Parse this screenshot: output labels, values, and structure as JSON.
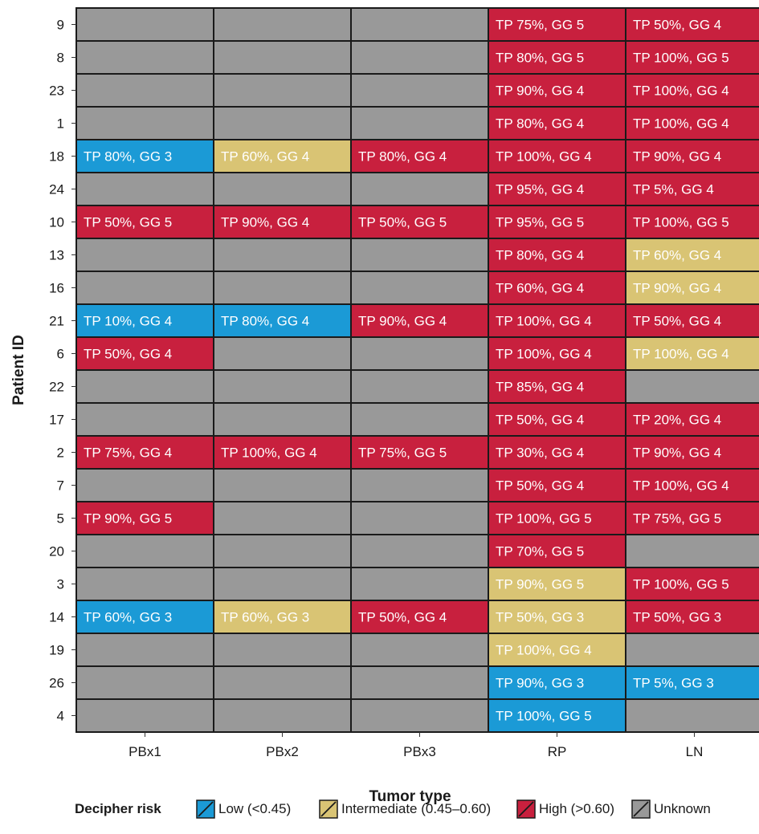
{
  "chart_data": {
    "type": "heatmap",
    "xlabel": "Tumor type",
    "ylabel": "Patient ID",
    "x_categories": [
      "PBx1",
      "PBx2",
      "PBx3",
      "RP",
      "LN"
    ],
    "y_categories": [
      "9",
      "8",
      "23",
      "1",
      "18",
      "24",
      "10",
      "13",
      "16",
      "21",
      "6",
      "22",
      "17",
      "2",
      "7",
      "5",
      "20",
      "3",
      "14",
      "19",
      "26",
      "4"
    ],
    "risk_colors": {
      "low": "#1b9ad6",
      "intermediate": "#d9c474",
      "high": "#c8203e",
      "unknown": "#999999"
    },
    "legend": {
      "title": "Decipher risk",
      "placement": "bottom",
      "entries": [
        {
          "key": "low",
          "label": "Low (<0.45)"
        },
        {
          "key": "intermediate",
          "label": "Intermediate (0.45–0.60)"
        },
        {
          "key": "high",
          "label": "High (>0.60)"
        },
        {
          "key": "unknown",
          "label": "Unknown"
        }
      ]
    },
    "cells": [
      [
        "9",
        "RP",
        "high",
        "TP 75%, GG 5"
      ],
      [
        "9",
        "LN",
        "high",
        "TP 50%, GG 4"
      ],
      [
        "8",
        "RP",
        "high",
        "TP 80%, GG 5"
      ],
      [
        "8",
        "LN",
        "high",
        "TP 100%, GG 5"
      ],
      [
        "23",
        "RP",
        "high",
        "TP 90%, GG 4"
      ],
      [
        "23",
        "LN",
        "high",
        "TP 100%, GG 4"
      ],
      [
        "1",
        "RP",
        "high",
        "TP 80%, GG 4"
      ],
      [
        "1",
        "LN",
        "high",
        "TP 100%, GG 4"
      ],
      [
        "18",
        "PBx1",
        "low",
        "TP 80%, GG 3"
      ],
      [
        "18",
        "PBx2",
        "intermediate",
        "TP 60%, GG 4"
      ],
      [
        "18",
        "PBx3",
        "high",
        "TP 80%, GG 4"
      ],
      [
        "18",
        "RP",
        "high",
        "TP 100%, GG 4"
      ],
      [
        "18",
        "LN",
        "high",
        "TP 90%, GG 4"
      ],
      [
        "24",
        "RP",
        "high",
        "TP 95%, GG 4"
      ],
      [
        "24",
        "LN",
        "high",
        "TP 5%, GG 4"
      ],
      [
        "10",
        "PBx1",
        "high",
        "TP 50%, GG 5"
      ],
      [
        "10",
        "PBx2",
        "high",
        "TP 90%, GG 4"
      ],
      [
        "10",
        "PBx3",
        "high",
        "TP 50%, GG 5"
      ],
      [
        "10",
        "RP",
        "high",
        "TP 95%, GG 5"
      ],
      [
        "10",
        "LN",
        "high",
        "TP 100%, GG 5"
      ],
      [
        "13",
        "RP",
        "high",
        "TP 80%, GG 4"
      ],
      [
        "13",
        "LN",
        "intermediate",
        "TP 60%, GG 4"
      ],
      [
        "16",
        "RP",
        "high",
        "TP 60%, GG 4"
      ],
      [
        "16",
        "LN",
        "intermediate",
        "TP 90%, GG 4"
      ],
      [
        "21",
        "PBx1",
        "low",
        "TP 10%, GG 4"
      ],
      [
        "21",
        "PBx2",
        "low",
        "TP 80%, GG 4"
      ],
      [
        "21",
        "PBx3",
        "high",
        "TP 90%, GG 4"
      ],
      [
        "21",
        "RP",
        "high",
        "TP 100%, GG 4"
      ],
      [
        "21",
        "LN",
        "high",
        "TP 50%, GG 4"
      ],
      [
        "6",
        "PBx1",
        "high",
        "TP 50%, GG 4"
      ],
      [
        "6",
        "RP",
        "high",
        "TP 100%, GG 4"
      ],
      [
        "6",
        "LN",
        "intermediate",
        "TP 100%, GG 4"
      ],
      [
        "22",
        "RP",
        "high",
        "TP 85%, GG 4"
      ],
      [
        "17",
        "RP",
        "high",
        "TP 50%, GG 4"
      ],
      [
        "17",
        "LN",
        "high",
        "TP 20%, GG 4"
      ],
      [
        "2",
        "PBx1",
        "high",
        "TP 75%, GG 4"
      ],
      [
        "2",
        "PBx2",
        "high",
        "TP 100%, GG 4"
      ],
      [
        "2",
        "PBx3",
        "high",
        "TP 75%, GG 5"
      ],
      [
        "2",
        "RP",
        "high",
        "TP 30%, GG 4"
      ],
      [
        "2",
        "LN",
        "high",
        "TP 90%, GG 4"
      ],
      [
        "7",
        "RP",
        "high",
        "TP 50%, GG 4"
      ],
      [
        "7",
        "LN",
        "high",
        "TP 100%, GG 4"
      ],
      [
        "5",
        "PBx1",
        "high",
        "TP 90%, GG 5"
      ],
      [
        "5",
        "RP",
        "high",
        "TP 100%, GG 5"
      ],
      [
        "5",
        "LN",
        "high",
        "TP 75%, GG 5"
      ],
      [
        "20",
        "RP",
        "high",
        "TP 70%, GG 5"
      ],
      [
        "3",
        "RP",
        "intermediate",
        "TP 90%, GG 5"
      ],
      [
        "3",
        "LN",
        "high",
        "TP 100%, GG 5"
      ],
      [
        "14",
        "PBx1",
        "low",
        "TP 60%, GG 3"
      ],
      [
        "14",
        "PBx2",
        "intermediate",
        "TP 60%, GG 3"
      ],
      [
        "14",
        "PBx3",
        "high",
        "TP 50%, GG 4"
      ],
      [
        "14",
        "RP",
        "intermediate",
        "TP 50%, GG 3"
      ],
      [
        "14",
        "LN",
        "high",
        "TP 50%, GG 3"
      ],
      [
        "19",
        "RP",
        "intermediate",
        "TP 100%, GG 4"
      ],
      [
        "26",
        "RP",
        "low",
        "TP 90%, GG 3"
      ],
      [
        "26",
        "LN",
        "low",
        "TP 5%, GG 3"
      ],
      [
        "4",
        "RP",
        "low",
        "TP 100%, GG 5"
      ]
    ]
  }
}
